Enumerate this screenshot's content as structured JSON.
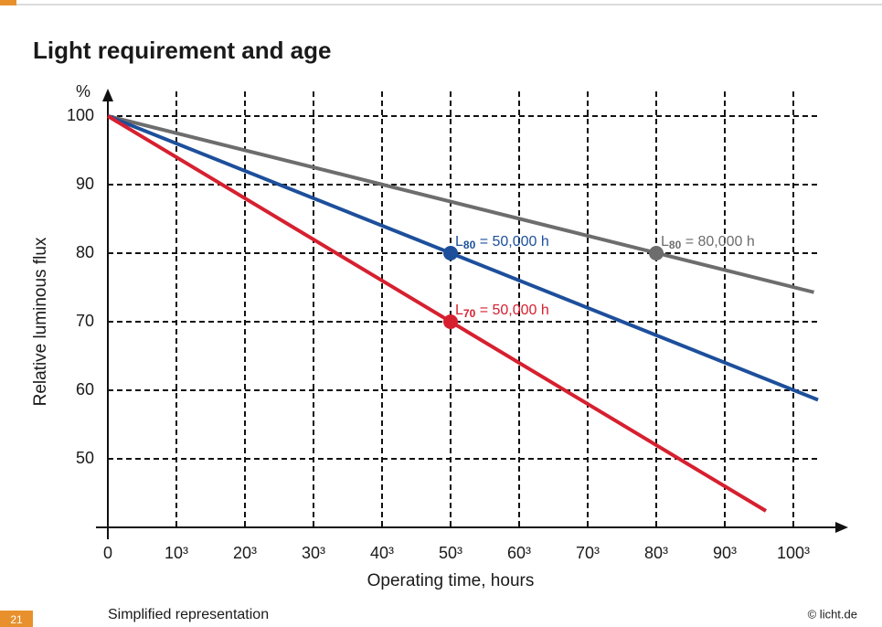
{
  "page_number": "21",
  "chart_data": {
    "type": "line",
    "title": "Light requirement and age",
    "y_unit": "%",
    "ylabel": "Relative luminous flux",
    "xlabel": "Operating time, hours",
    "xlim": [
      0,
      108
    ],
    "ylim": [
      40,
      104
    ],
    "xticks": [
      0,
      {
        "value": 10,
        "label": "10³"
      },
      {
        "value": 20,
        "label": "20³"
      },
      {
        "value": 30,
        "label": "30³"
      },
      {
        "value": 40,
        "label": "40³"
      },
      {
        "value": 50,
        "label": "50³"
      },
      {
        "value": 60,
        "label": "60³"
      },
      {
        "value": 70,
        "label": "70³"
      },
      {
        "value": 80,
        "label": "80³"
      },
      {
        "value": 90,
        "label": "90³"
      },
      {
        "value": 100,
        "label": "100³"
      }
    ],
    "yticks": [
      50,
      60,
      70,
      80,
      90,
      100
    ],
    "grid": true,
    "series": [
      {
        "color": "#6d6d6d",
        "x": [
          0,
          103
        ],
        "values": [
          100,
          74.3
        ]
      },
      {
        "color": "#1d4f9b",
        "x": [
          0,
          103.6
        ],
        "values": [
          100,
          58.6
        ]
      },
      {
        "color": "#d6202f",
        "x": [
          0,
          96
        ],
        "values": [
          100,
          42.4
        ]
      }
    ],
    "annotations": [
      {
        "label": "L",
        "subscript": "80",
        "suffix": " = 50,000 h",
        "x": 50,
        "y": 80,
        "color": "#1d4f9b"
      },
      {
        "label": "L",
        "subscript": "80",
        "suffix": " = 80,000 h",
        "x": 80,
        "y": 80,
        "color": "#6d6d6d"
      },
      {
        "label": "L",
        "subscript": "70",
        "suffix": " = 50,000 h",
        "x": 50,
        "y": 70,
        "color": "#d6202f"
      }
    ],
    "note": "Simplified representation",
    "source": "© licht.de"
  }
}
